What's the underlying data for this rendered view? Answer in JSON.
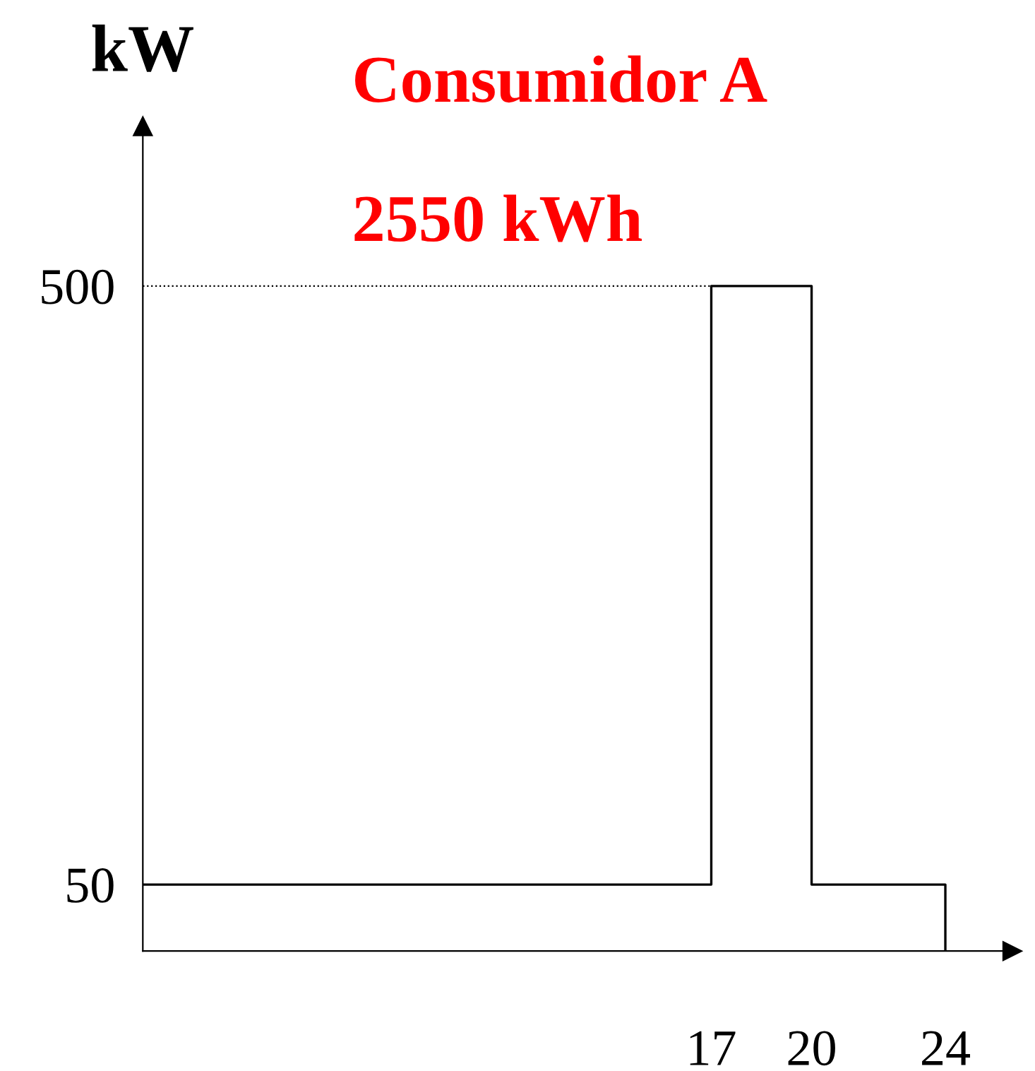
{
  "chart_data": {
    "type": "step",
    "title": "Consumidor A",
    "subtitle": "2550 kWh",
    "ylabel": "kW",
    "x": [
      0,
      17,
      20,
      24
    ],
    "series": [
      {
        "color": "#000000",
        "values": [
          50,
          500,
          50,
          0
        ]
      }
    ],
    "xlim": [
      0,
      26
    ],
    "ylim": [
      0,
      620
    ],
    "xticks": [
      17,
      20,
      24
    ],
    "yticks": [
      50,
      500
    ],
    "ref_lines": [
      {
        "axis": "y",
        "value": 500,
        "line_style": "dotted",
        "color": "#000000"
      }
    ],
    "grid": false,
    "legend": false
  }
}
